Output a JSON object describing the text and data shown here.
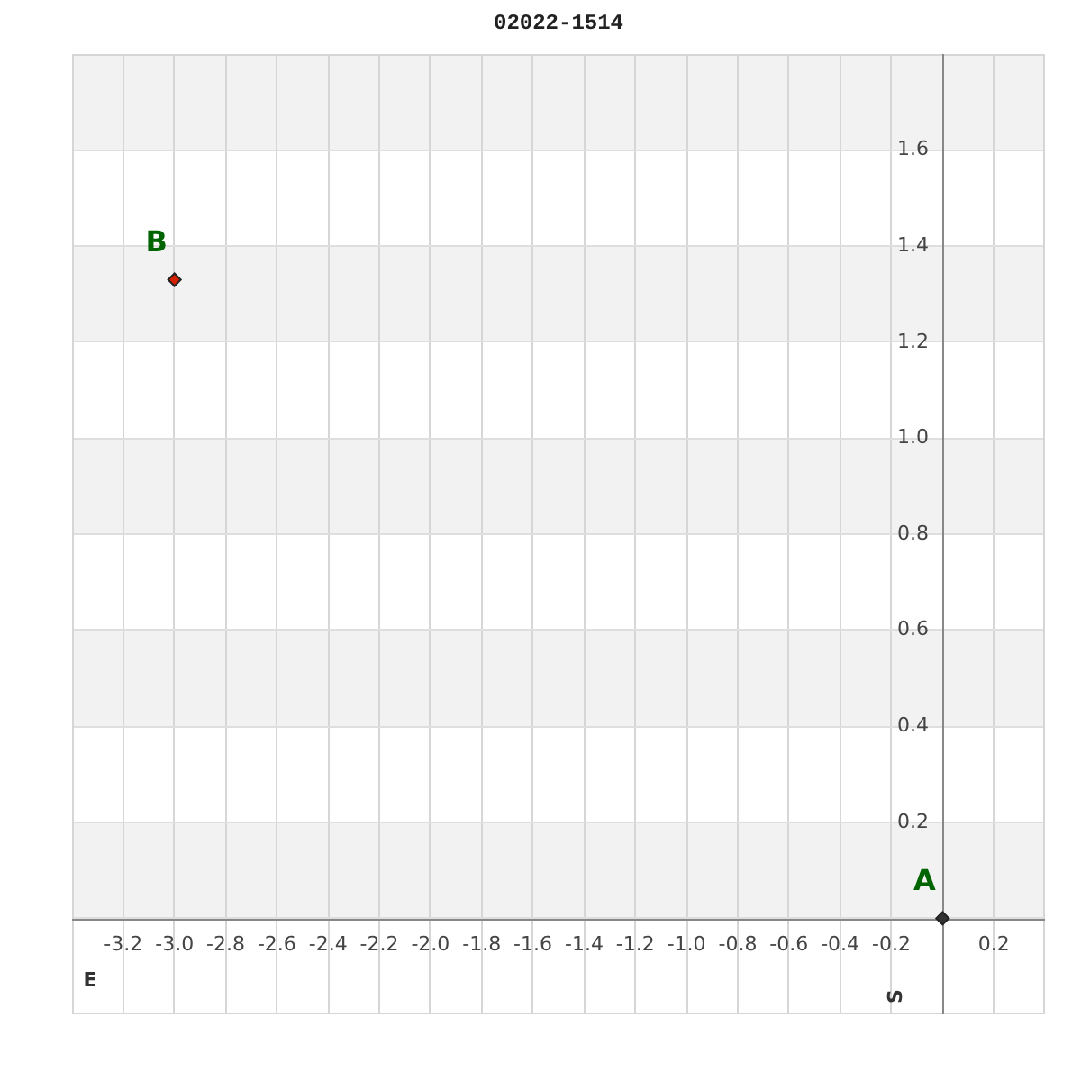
{
  "chart_data": {
    "type": "scatter",
    "title": "02022-1514",
    "xlabel": "E",
    "ylabel": "S",
    "x": [
      0,
      -3.0
    ],
    "values": [
      0,
      1.33
    ],
    "colors": [
      "#333333",
      "#d42000"
    ],
    "marker": "diamond",
    "xlim": [
      -3.4,
      0.4
    ],
    "ylim": [
      -0.2,
      1.8
    ],
    "xticks": [
      -3.2,
      {
        "value": -3,
        "label": "-3.0"
      },
      -2.8,
      -2.6,
      -2.4,
      -2.2,
      {
        "value": -2,
        "label": "-2.0"
      },
      -1.8,
      -1.6,
      -1.4,
      -1.2,
      {
        "value": -1,
        "label": "-1.0"
      },
      -0.8,
      -0.6,
      -0.4,
      -0.2,
      {
        "value": 0,
        "label": null
      },
      0.2
    ],
    "yticks": [
      {
        "value": 0,
        "label": null
      },
      0.2,
      0.4,
      0.6,
      0.8,
      {
        "value": 1,
        "label": "1.0"
      },
      1.2,
      1.4,
      1.6
    ],
    "grid": true,
    "legend": false,
    "bands": [
      {
        "axis": "y",
        "from": 0,
        "to": 0.2,
        "color": "#f2f2f2"
      },
      {
        "axis": "y",
        "from": 0.4,
        "to": 0.6,
        "color": "#f2f2f2"
      },
      {
        "axis": "y",
        "from": 0.8,
        "to": 1.0,
        "color": "#f2f2f2"
      },
      {
        "axis": "y",
        "from": 1.2,
        "to": 1.4,
        "color": "#f2f2f2"
      },
      {
        "axis": "y",
        "from": 1.6,
        "to": 1.8,
        "color": "#f2f2f2"
      }
    ],
    "annotations": [
      {
        "text": "A",
        "x": 0,
        "y": 0
      },
      {
        "text": "B",
        "x": -3.0,
        "y": 1.33
      }
    ]
  }
}
